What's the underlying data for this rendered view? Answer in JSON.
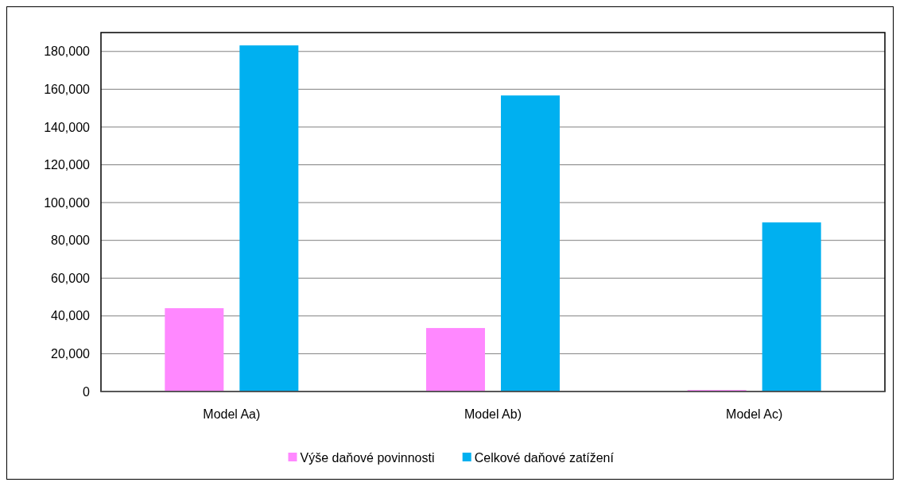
{
  "chart_data": {
    "type": "bar",
    "categories": [
      "Model Aa)",
      "Model Ab)",
      "Model Ac)"
    ],
    "series": [
      {
        "name": "Výše daňové povinnosti",
        "color": "#ff88ff",
        "values": [
          44100,
          33600,
          800
        ]
      },
      {
        "name": "Celkové daňové zatížení",
        "color": "#00b0f0",
        "values": [
          183200,
          156700,
          89500
        ]
      }
    ],
    "ylim": [
      0,
      190000
    ],
    "yticks": [
      {
        "value": 0,
        "label": "0"
      },
      {
        "value": 20000,
        "label": "20,000"
      },
      {
        "value": 40000,
        "label": "40,000"
      },
      {
        "value": 60000,
        "label": "60,000"
      },
      {
        "value": 80000,
        "label": "80,000"
      },
      {
        "value": 100000,
        "label": "100,000"
      },
      {
        "value": 120000,
        "label": "120,000"
      },
      {
        "value": 140000,
        "label": "140,000"
      },
      {
        "value": 160000,
        "label": "160,000"
      },
      {
        "value": 180000,
        "label": "180,000"
      }
    ],
    "grid": "y",
    "legend": "bottom"
  }
}
